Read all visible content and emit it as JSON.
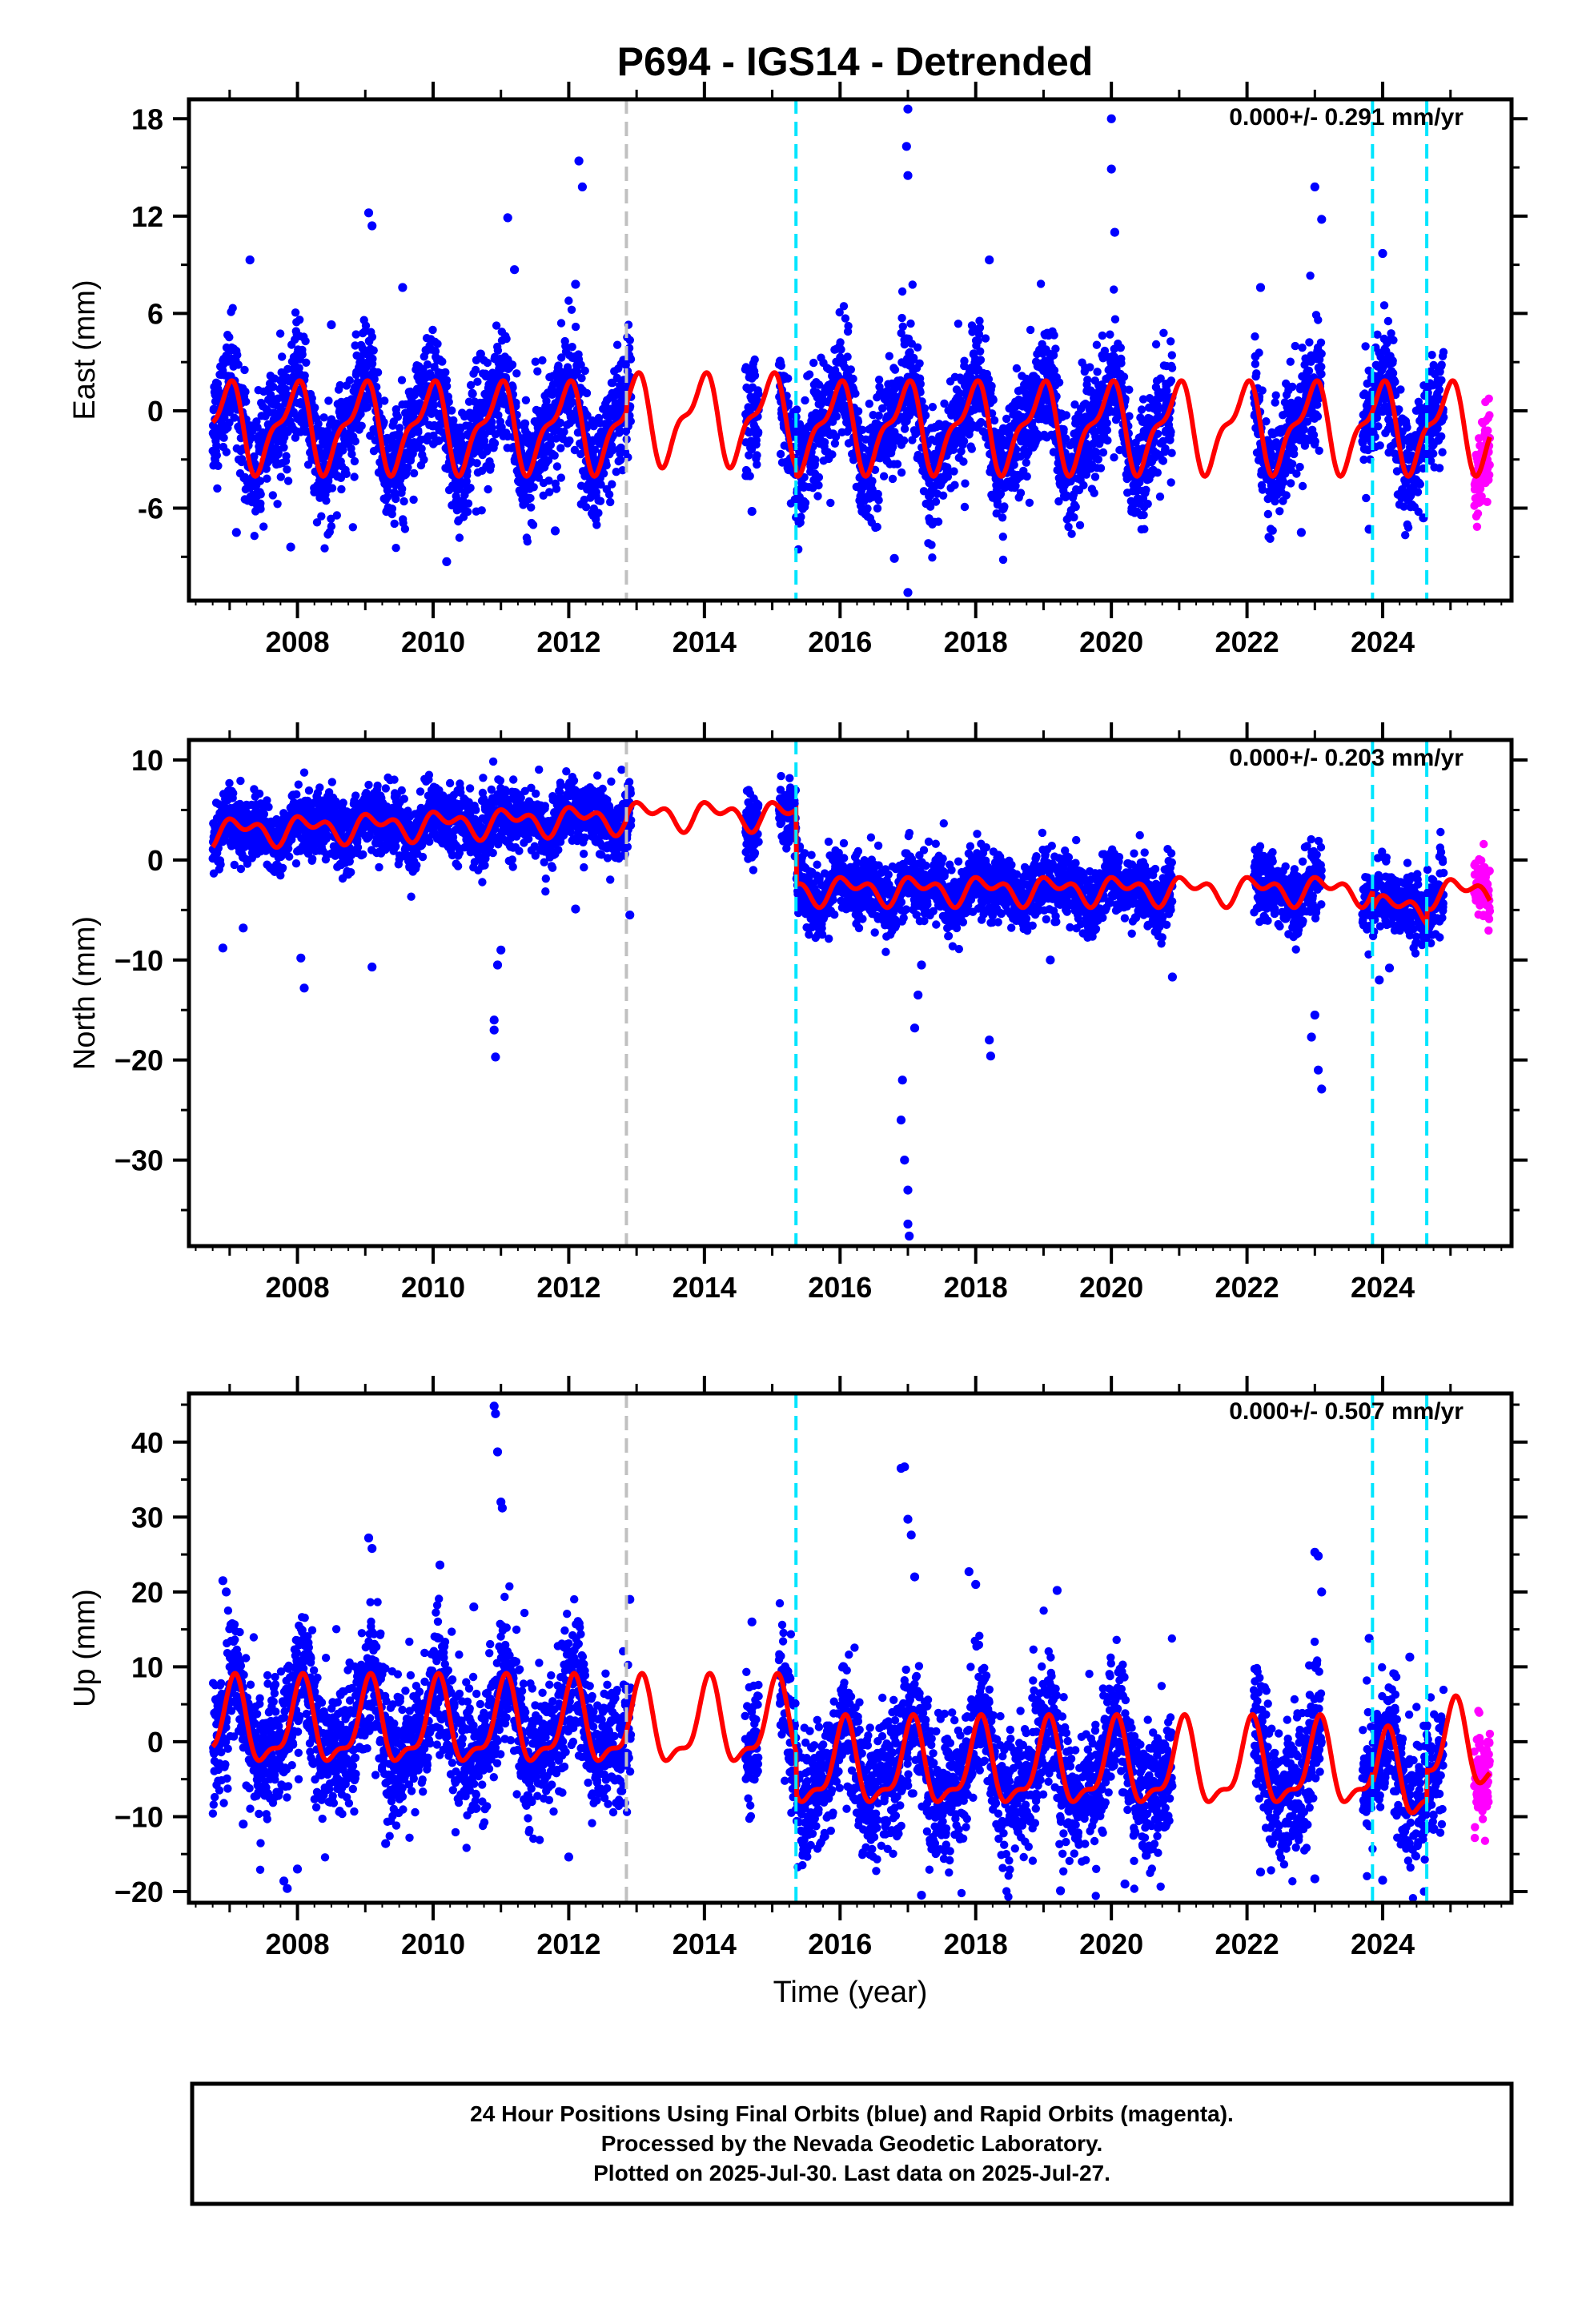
{
  "title": "P694 - IGS14 - Detrended",
  "colors": {
    "final_orbits": "#0000ff",
    "rapid_orbits": "#ff00ff",
    "model_fit": "#ff0000",
    "antenna_change_line": "#c0c0c0",
    "equipment_change_line": "#00e5ff"
  },
  "chart_data": [
    {
      "type": "scatter",
      "name": "east",
      "ylabel": "East (mm)",
      "xlabel": "",
      "xlim": [
        2006.4,
        2025.9
      ],
      "ylim": [
        -11.7,
        19.2
      ],
      "xticks": [
        2008,
        2010,
        2012,
        2014,
        2016,
        2018,
        2020,
        2022,
        2024
      ],
      "xtick_labels": [
        "2008",
        "2010",
        "2012",
        "2014",
        "2016",
        "2018",
        "2020",
        "2022",
        "2024"
      ],
      "yticks": [
        -6,
        0,
        6,
        12,
        18
      ],
      "ytick_labels": [
        "-6",
        "0",
        "6",
        "12",
        "18"
      ],
      "rate_annotation": "0.000+/- 0.291 mm/yr",
      "gray_lines": [
        2012.85
      ],
      "cyan_lines": [
        2015.35,
        2023.85,
        2024.65
      ],
      "model": {
        "offset": -1.0,
        "annual_amp": 2.4,
        "annual_phase": 1.9,
        "semi_amp": 1.0,
        "semi_phase": 0.5,
        "steps": [
          {
            "x": 2012.85,
            "d": 0.5
          },
          {
            "x": 2015.35,
            "d": -0.5
          }
        ]
      },
      "scatter_sd": 1.7,
      "data_segments": [
        [
          2006.75,
          2012.92
        ],
        [
          2014.6,
          2014.8
        ],
        [
          2015.1,
          2020.9
        ],
        [
          2022.1,
          2023.1
        ],
        [
          2023.7,
          2024.9
        ]
      ],
      "rapid_segment": [
        2025.35,
        2025.58
      ],
      "outliers": [
        [
          2007.3,
          9.3
        ],
        [
          2007.1,
          -7.5
        ],
        [
          2007.9,
          -8.4
        ],
        [
          2008.5,
          5.3
        ],
        [
          2009.05,
          12.2
        ],
        [
          2009.1,
          11.4
        ],
        [
          2009.55,
          7.6
        ],
        [
          2010.2,
          -9.3
        ],
        [
          2010.7,
          3.5
        ],
        [
          2011.1,
          11.9
        ],
        [
          2011.2,
          8.7
        ],
        [
          2011.8,
          -7.4
        ],
        [
          2012.15,
          15.4
        ],
        [
          2012.2,
          13.8
        ],
        [
          2012.1,
          7.8
        ],
        [
          2014.7,
          -6.2
        ],
        [
          2017.0,
          18.6
        ],
        [
          2016.98,
          16.3
        ],
        [
          2017.0,
          14.5
        ],
        [
          2017.0,
          -11.2
        ],
        [
          2016.8,
          -9.1
        ],
        [
          2018.2,
          9.3
        ],
        [
          2020.0,
          18.0
        ],
        [
          2020.0,
          14.9
        ],
        [
          2020.05,
          11.0
        ],
        [
          2022.2,
          7.6
        ],
        [
          2022.8,
          -7.5
        ],
        [
          2023.0,
          13.8
        ],
        [
          2023.1,
          11.8
        ],
        [
          2023.8,
          -7.3
        ],
        [
          2024.0,
          9.7
        ],
        [
          2024.6,
          -6.6
        ]
      ]
    },
    {
      "type": "scatter",
      "name": "north",
      "ylabel": "North (mm)",
      "xlabel": "",
      "xlim": [
        2006.4,
        2025.9
      ],
      "ylim": [
        -38.6,
        12.0
      ],
      "xticks": [
        2008,
        2010,
        2012,
        2014,
        2016,
        2018,
        2020,
        2022,
        2024
      ],
      "xtick_labels": [
        "2008",
        "2010",
        "2012",
        "2014",
        "2016",
        "2018",
        "2020",
        "2022",
        "2024"
      ],
      "yticks": [
        -30,
        -20,
        -10,
        0,
        10
      ],
      "ytick_labels": [
        "−30",
        "−20",
        "−10",
        "0",
        "10"
      ],
      "rate_annotation": "0.000+/- 0.203 mm/yr",
      "gray_lines": [
        2012.85
      ],
      "cyan_lines": [
        2015.35,
        2023.85,
        2024.65
      ],
      "model": {
        "trend_start": 2.8,
        "trend_end": 4.2,
        "trend_x0": 2006.75,
        "trend_x1": 2012.85,
        "offset_after1": 4.5,
        "offset_after2": -2.6,
        "annual_amp": 1.0,
        "annual_phase": 0.6,
        "semi_amp": 0.8,
        "semi_phase": 2.1,
        "steps": [
          {
            "x": 2015.35,
            "d": -7.5
          },
          {
            "x": 2023.85,
            "d": -1.8
          },
          {
            "x": 2024.65,
            "d": 1.6
          }
        ]
      },
      "scatter_sd": 1.6,
      "data_segments": [
        [
          2006.75,
          2012.92
        ],
        [
          2014.6,
          2014.8
        ],
        [
          2015.1,
          2020.9
        ],
        [
          2022.1,
          2023.1
        ],
        [
          2023.7,
          2024.9
        ]
      ],
      "rapid_segment": [
        2025.35,
        2025.58
      ],
      "outliers": [
        [
          2006.9,
          -8.8
        ],
        [
          2007.2,
          -6.8
        ],
        [
          2008.1,
          -12.8
        ],
        [
          2008.05,
          -9.8
        ],
        [
          2009.1,
          -10.7
        ],
        [
          2010.9,
          -16.0
        ],
        [
          2010.9,
          -17.0
        ],
        [
          2010.92,
          -19.7
        ],
        [
          2010.95,
          -10.5
        ],
        [
          2011.0,
          -9.0
        ],
        [
          2012.1,
          -4.9
        ],
        [
          2012.9,
          -5.5
        ],
        [
          2016.9,
          -26.0
        ],
        [
          2016.95,
          -30.0
        ],
        [
          2017.0,
          -36.4
        ],
        [
          2017.02,
          -37.6
        ],
        [
          2017.0,
          -33.0
        ],
        [
          2016.92,
          -22.0
        ],
        [
          2017.1,
          -16.8
        ],
        [
          2017.15,
          -13.5
        ],
        [
          2017.2,
          -10.5
        ],
        [
          2018.2,
          -18.0
        ],
        [
          2018.22,
          -19.6
        ],
        [
          2019.1,
          -10.0
        ],
        [
          2020.9,
          -11.7
        ],
        [
          2022.95,
          -17.7
        ],
        [
          2023.05,
          -21.0
        ],
        [
          2023.1,
          -22.9
        ],
        [
          2023.0,
          -15.5
        ],
        [
          2023.95,
          -12.0
        ],
        [
          2024.1,
          -10.8
        ]
      ]
    },
    {
      "type": "scatter",
      "name": "up",
      "ylabel": "Up (mm)",
      "xlabel": "Time (year)",
      "xlim": [
        2006.4,
        2025.9
      ],
      "ylim": [
        -21.5,
        46.5
      ],
      "xticks": [
        2008,
        2010,
        2012,
        2014,
        2016,
        2018,
        2020,
        2022,
        2024
      ],
      "xtick_labels": [
        "2008",
        "2010",
        "2012",
        "2014",
        "2016",
        "2018",
        "2020",
        "2022",
        "2024"
      ],
      "yticks": [
        -20,
        -10,
        0,
        10,
        20,
        30,
        40
      ],
      "ytick_labels": [
        "−20",
        "−10",
        "0",
        "10",
        "20",
        "30",
        "40"
      ],
      "rate_annotation": "0.000+/- 0.507 mm/yr",
      "gray_lines": [
        2012.85
      ],
      "cyan_lines": [
        2015.35,
        2023.85,
        2024.65
      ],
      "model": {
        "offset": 2.0,
        "annual_amp": 5.2,
        "annual_phase": 1.2,
        "semi_amp": 2.0,
        "semi_phase": 0.4,
        "steps": [
          {
            "x": 2015.35,
            "d": -5.5
          },
          {
            "x": 2023.85,
            "d": -1.5
          },
          {
            "x": 2024.65,
            "d": 4.0
          }
        ]
      },
      "scatter_sd": 4.3,
      "data_segments": [
        [
          2006.75,
          2012.92
        ],
        [
          2014.6,
          2014.8
        ],
        [
          2015.1,
          2020.9
        ],
        [
          2022.1,
          2023.1
        ],
        [
          2023.7,
          2024.9
        ]
      ],
      "rapid_segment": [
        2025.35,
        2025.58
      ],
      "outliers": [
        [
          2006.9,
          21.5
        ],
        [
          2006.95,
          20.0
        ],
        [
          2007.2,
          -11.0
        ],
        [
          2007.8,
          -18.6
        ],
        [
          2007.85,
          -19.6
        ],
        [
          2008.0,
          -17.0
        ],
        [
          2009.05,
          27.2
        ],
        [
          2009.1,
          25.8
        ],
        [
          2009.3,
          -13.6
        ],
        [
          2010.1,
          23.6
        ],
        [
          2010.6,
          18.0
        ],
        [
          2010.9,
          44.8
        ],
        [
          2010.92,
          43.8
        ],
        [
          2010.95,
          38.7
        ],
        [
          2011.0,
          32.0
        ],
        [
          2011.02,
          31.2
        ],
        [
          2012.0,
          -15.4
        ],
        [
          2012.9,
          19.0
        ],
        [
          2014.7,
          16.0
        ],
        [
          2016.9,
          36.5
        ],
        [
          2016.95,
          36.7
        ],
        [
          2017.0,
          29.7
        ],
        [
          2017.05,
          27.6
        ],
        [
          2017.1,
          22.0
        ],
        [
          2017.2,
          -20.5
        ],
        [
          2017.9,
          22.7
        ],
        [
          2018.0,
          21.0
        ],
        [
          2019.2,
          20.2
        ],
        [
          2019.25,
          -19.9
        ],
        [
          2020.2,
          -19.0
        ],
        [
          2022.2,
          -17.4
        ],
        [
          2023.0,
          25.3
        ],
        [
          2023.05,
          24.8
        ],
        [
          2023.1,
          20.0
        ],
        [
          2023.0,
          -18.3
        ],
        [
          2023.8,
          13.8
        ],
        [
          2024.0,
          -18.5
        ],
        [
          2024.4,
          11.3
        ]
      ]
    }
  ],
  "footer": {
    "line1": "24 Hour Positions Using Final Orbits (blue) and Rapid Orbits (magenta).",
    "line2": "Processed by the Nevada Geodetic Laboratory.",
    "line3": "Plotted on 2025-Jul-30. Last data on 2025-Jul-27."
  }
}
